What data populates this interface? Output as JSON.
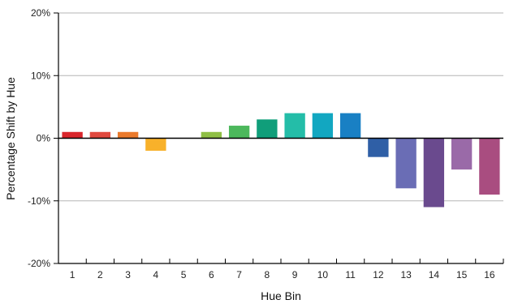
{
  "chart_data": {
    "type": "bar",
    "xlabel": "Hue Bin",
    "ylabel": "Percentage Shift by Hue",
    "ylim": [
      -20,
      20
    ],
    "yticks": [
      -20,
      -10,
      0,
      10,
      20
    ],
    "ytick_labels": [
      "-20%",
      "-10%",
      "0%",
      "10%",
      "20%"
    ],
    "grid": "horizontal",
    "categories": [
      "1",
      "2",
      "3",
      "4",
      "5",
      "6",
      "7",
      "8",
      "9",
      "10",
      "11",
      "12",
      "13",
      "14",
      "15",
      "16"
    ],
    "values": [
      1,
      1,
      1,
      -2,
      0,
      1,
      2,
      3,
      4,
      4,
      4,
      -3,
      -8,
      -11,
      -5,
      -9
    ],
    "colors": [
      "#d9262c",
      "#e0493f",
      "#ea7a2c",
      "#f8b12a",
      "#cccccc",
      "#8fbf45",
      "#4cb85c",
      "#109e7a",
      "#24bda8",
      "#12a7c1",
      "#1980c4",
      "#2f5fa6",
      "#6a6db5",
      "#6a4a8e",
      "#9a6aa8",
      "#a94d80"
    ]
  }
}
